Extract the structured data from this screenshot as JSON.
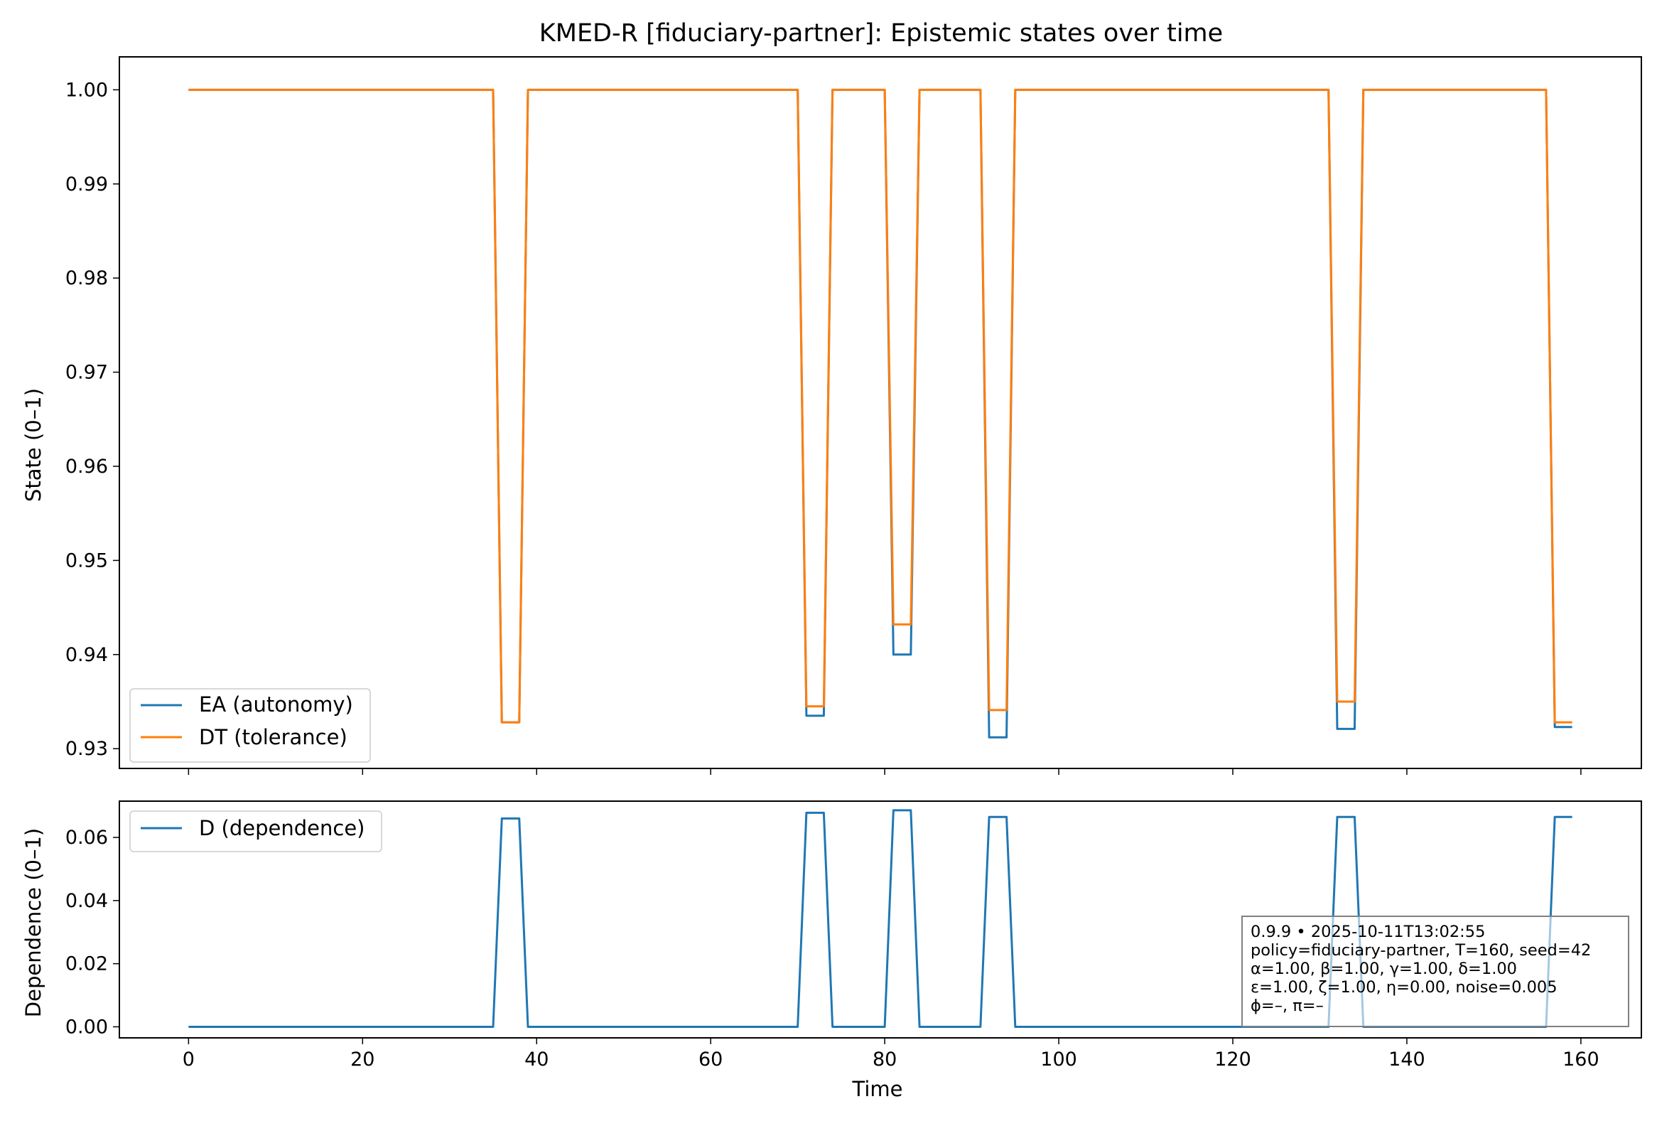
{
  "title": "KMED-R [fiduciary-partner]: Epistemic states over time",
  "colors": {
    "ea": "#1f77b4",
    "dt": "#ff7f0e",
    "d": "#1f77b4"
  },
  "top_panel": {
    "ylabel": "State (0–1)",
    "yticks": [
      "0.93",
      "0.94",
      "0.95",
      "0.96",
      "0.97",
      "0.98",
      "0.99",
      "1.00"
    ],
    "legend": [
      "EA (autonomy)",
      "DT (tolerance)"
    ]
  },
  "bottom_panel": {
    "ylabel": "Dependence (0–1)",
    "xlabel": "Time",
    "yticks": [
      "0.00",
      "0.02",
      "0.04",
      "0.06"
    ],
    "xticks": [
      "0",
      "20",
      "40",
      "60",
      "80",
      "100",
      "120",
      "140",
      "160"
    ],
    "legend": [
      "D (dependence)"
    ]
  },
  "info_box": {
    "line1": "0.9.9  •  2025-10-11T13:02:55",
    "line2": "policy=fiduciary-partner, T=160, seed=42",
    "line3": "α=1.00, β=1.00, γ=1.00, δ=1.00",
    "line4": "ε=1.00, ζ=1.00, η=0.00, noise=0.005",
    "line5": "ϕ=–, π=–"
  },
  "chart_data": [
    {
      "type": "line",
      "title": "KMED-R [fiduciary-partner]: Epistemic states over time",
      "xlabel": "",
      "ylabel": "State (0–1)",
      "xlim": [
        -7.95,
        166.95
      ],
      "ylim": [
        0.9279,
        1.0035
      ],
      "x_range": [
        0,
        159
      ],
      "baseline": 1.0,
      "grid": false,
      "legend_position": "lower-left",
      "dips": [
        {
          "start": 36,
          "end": 38,
          "ea": 0.9328,
          "dt": 0.9328
        },
        {
          "start": 71,
          "end": 73,
          "ea": 0.9335,
          "dt": 0.9345
        },
        {
          "start": 81,
          "end": 83,
          "ea": 0.94,
          "dt": 0.9432
        },
        {
          "start": 92,
          "end": 94,
          "ea": 0.9312,
          "dt": 0.9341
        },
        {
          "start": 132,
          "end": 134,
          "ea": 0.9321,
          "dt": 0.935
        },
        {
          "start": 157,
          "end": 159,
          "ea": 0.9323,
          "dt": 0.9328
        }
      ],
      "series": [
        {
          "name": "EA (autonomy)",
          "key": "ea"
        },
        {
          "name": "DT (tolerance)",
          "key": "dt"
        }
      ]
    },
    {
      "type": "line",
      "xlabel": "Time",
      "ylabel": "Dependence (0–1)",
      "xlim": [
        -7.95,
        166.95
      ],
      "ylim": [
        -0.0035,
        0.0715
      ],
      "x_range": [
        0,
        159
      ],
      "baseline": 0.0,
      "grid": false,
      "legend_position": "top-left",
      "dips": [
        {
          "start": 36,
          "end": 38,
          "d": 0.066
        },
        {
          "start": 71,
          "end": 73,
          "d": 0.0678
        },
        {
          "start": 81,
          "end": 83,
          "d": 0.0686
        },
        {
          "start": 92,
          "end": 94,
          "d": 0.0665
        },
        {
          "start": 132,
          "end": 134,
          "d": 0.0665
        },
        {
          "start": 157,
          "end": 159,
          "d": 0.0665
        }
      ],
      "series": [
        {
          "name": "D (dependence)",
          "key": "d"
        }
      ]
    }
  ]
}
